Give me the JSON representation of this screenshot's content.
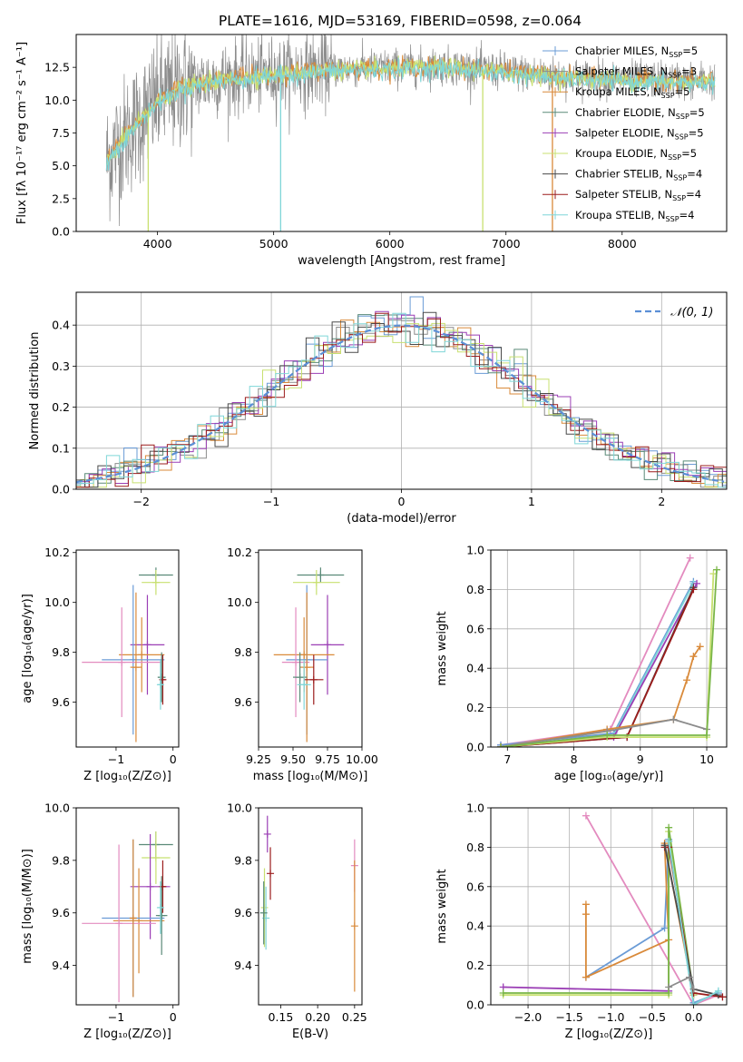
{
  "figure_title": "PLATE=1616, MJD=53169, FIBERID=0598, z=0.064",
  "colors": {
    "chabrier_miles": "#6a9bd6",
    "salpeter_miles": "#8c8c8c",
    "kroupa_miles": "#d98a3a",
    "chabrier_elodie": "#5a8a78",
    "salpeter_elodie": "#9b3fb5",
    "kroupa_elodie": "#c8e070",
    "chabrier_stelib": "#4a4a4a",
    "salpeter_stelib": "#9b1c1c",
    "kroupa_stelib": "#7fd6d8",
    "pink": "#e38bbf",
    "green": "#7ab648",
    "gaussian": "#5b8fd6",
    "grid": "#b0b0b0"
  },
  "chart_data": [
    {
      "id": "spectrum",
      "type": "line",
      "title": "PLATE=1616, MJD=53169, FIBERID=0598, z=0.064",
      "xlabel": "wavelength [Angstrom, rest frame]",
      "ylabel": "Flux [fλ 10⁻¹⁷ erg cm⁻² s⁻¹ A⁻¹]",
      "xlim": [
        3300,
        8900
      ],
      "ylim": [
        0,
        15
      ],
      "xticks": [
        4000,
        5000,
        6000,
        7000,
        8000
      ],
      "yticks": [
        0.0,
        2.5,
        5.0,
        7.5,
        10.0,
        12.5
      ],
      "ytick_labels": [
        "0.0",
        "2.5",
        "5.0",
        "7.5",
        "10.0",
        "12.5"
      ],
      "legend_position": "right",
      "legend": [
        {
          "label": "Chabrier MILES, N",
          "sub": "SSP",
          "suffix": "=5",
          "color": "#6a9bd6"
        },
        {
          "label": "Salpeter MILES, N",
          "sub": "SSP",
          "suffix": "=3",
          "color": "#8c8c8c"
        },
        {
          "label": "Kroupa MILES, N",
          "sub": "SSP",
          "suffix": "=5",
          "color": "#d98a3a"
        },
        {
          "label": "Chabrier ELODIE, N",
          "sub": "SSP",
          "suffix": "=5",
          "color": "#5a8a78"
        },
        {
          "label": "Salpeter ELODIE, N",
          "sub": "SSP",
          "suffix": "=5",
          "color": "#9b3fb5"
        },
        {
          "label": "Kroupa ELODIE, N",
          "sub": "SSP",
          "suffix": "=5",
          "color": "#c8e070"
        },
        {
          "label": "Chabrier STELIB, N",
          "sub": "SSP",
          "suffix": "=4",
          "color": "#4a4a4a"
        },
        {
          "label": "Salpeter STELIB, N",
          "sub": "SSP",
          "suffix": "=4",
          "color": "#9b1c1c"
        },
        {
          "label": "Kroupa STELIB, N",
          "sub": "SSP",
          "suffix": "=4",
          "color": "#7fd6d8"
        }
      ],
      "continuum": [
        [
          3550,
          5.2
        ],
        [
          3650,
          6.5
        ],
        [
          3800,
          8.0
        ],
        [
          3900,
          9.0
        ],
        [
          4000,
          10.0
        ],
        [
          4200,
          11.0
        ],
        [
          4500,
          11.6
        ],
        [
          5000,
          12.0
        ],
        [
          5500,
          12.4
        ],
        [
          6000,
          12.5
        ],
        [
          6500,
          12.6
        ],
        [
          7000,
          12.2
        ],
        [
          7500,
          11.8
        ],
        [
          8000,
          11.6
        ],
        [
          8500,
          11.5
        ],
        [
          8800,
          11.5
        ]
      ],
      "absorption_lines": [
        {
          "x": 3920,
          "depth": 9.0,
          "color": "#c8e070"
        },
        {
          "x": 5060,
          "depth": 12.0,
          "color": "#7fd6d8"
        },
        {
          "x": 6800,
          "depth": 12.0,
          "color": "#c8e070"
        },
        {
          "x": 7400,
          "depth": 12.0,
          "color": "#d98a3a"
        }
      ]
    },
    {
      "id": "residual_hist",
      "type": "line",
      "xlabel": "(data-model)/error",
      "ylabel": "Normed distribution",
      "xlim": [
        -2.5,
        2.5
      ],
      "ylim": [
        0,
        0.48
      ],
      "xticks": [
        -2,
        -1,
        0,
        1,
        2
      ],
      "xtick_labels": [
        "−2",
        "−1",
        "0",
        "1",
        "2"
      ],
      "yticks": [
        0.0,
        0.1,
        0.2,
        0.3,
        0.4
      ],
      "ytick_labels": [
        "0.0",
        "0.1",
        "0.2",
        "0.3",
        "0.4"
      ],
      "grid": true,
      "legend_label": "𝒩(0, 1)",
      "legend_position": "top-right",
      "bin_width": 0.1,
      "model_curve": "gaussian mean 0 sigma 1"
    },
    {
      "id": "z_vs_age",
      "type": "scatter",
      "xlabel": "Z [log₁₀(Z/Z⊙)]",
      "ylabel": "age  [log₁₀(age/yr)]",
      "xlim": [
        -1.7,
        0.1
      ],
      "ylim": [
        9.42,
        10.21
      ],
      "xticks": [
        -1,
        0
      ],
      "xtick_labels": [
        "−1",
        "0"
      ],
      "yticks": [
        9.6,
        9.8,
        10.0,
        10.2
      ],
      "ytick_labels": [
        "9.6",
        "9.8",
        "10.0",
        "10.2"
      ],
      "points": [
        {
          "x": -0.3,
          "y": 10.11,
          "xerr": 0.3,
          "yerr": 0.03,
          "color": "#5a8a78"
        },
        {
          "x": -0.3,
          "y": 10.08,
          "xerr": 0.25,
          "yerr": 0.05,
          "color": "#c8e070"
        },
        {
          "x": -0.45,
          "y": 9.83,
          "xerr": 0.3,
          "yerr": 0.2,
          "color": "#9b3fb5"
        },
        {
          "x": -0.55,
          "y": 9.79,
          "xerr": 0.4,
          "yerr": 0.15,
          "color": "#d98a3a"
        },
        {
          "x": -0.7,
          "y": 9.77,
          "xerr": 0.55,
          "yerr": 0.3,
          "color": "#6a9bd6"
        },
        {
          "x": -0.9,
          "y": 9.76,
          "xerr": 0.7,
          "yerr": 0.22,
          "color": "#e38bbf"
        },
        {
          "x": -0.65,
          "y": 9.74,
          "xerr": 0.1,
          "yerr": 0.3,
          "color": "#d98a3a"
        },
        {
          "x": -0.2,
          "y": 9.7,
          "xerr": 0.07,
          "yerr": 0.1,
          "color": "#5a8a78"
        },
        {
          "x": -0.18,
          "y": 9.69,
          "xerr": 0.05,
          "yerr": 0.1,
          "color": "#9b1c1c"
        },
        {
          "x": -0.22,
          "y": 9.67,
          "xerr": 0.05,
          "yerr": 0.1,
          "color": "#7fd6d8"
        }
      ]
    },
    {
      "id": "mass_vs_age",
      "type": "scatter",
      "xlabel": "mass [log₁₀(M/M⊙)]",
      "xlim": [
        9.25,
        10.0
      ],
      "ylim": [
        9.42,
        10.21
      ],
      "xticks": [
        9.25,
        9.5,
        9.75,
        10.0
      ],
      "xtick_labels": [
        "9.25",
        "9.50",
        "9.75",
        "10.00"
      ],
      "yticks": [
        9.6,
        9.8,
        10.0,
        10.2
      ],
      "ytick_labels": [
        "9.6",
        "9.8",
        "10.0",
        "10.2"
      ],
      "points": [
        {
          "x": 9.7,
          "y": 10.11,
          "xerr": 0.17,
          "yerr": 0.03,
          "color": "#5a8a78"
        },
        {
          "x": 9.67,
          "y": 10.08,
          "xerr": 0.17,
          "yerr": 0.05,
          "color": "#c8e070"
        },
        {
          "x": 9.75,
          "y": 9.83,
          "xerr": 0.12,
          "yerr": 0.2,
          "color": "#9b3fb5"
        },
        {
          "x": 9.58,
          "y": 9.79,
          "xerr": 0.22,
          "yerr": 0.15,
          "color": "#d98a3a"
        },
        {
          "x": 9.6,
          "y": 9.77,
          "xerr": 0.15,
          "yerr": 0.3,
          "color": "#6a9bd6"
        },
        {
          "x": 9.52,
          "y": 9.76,
          "xerr": 0.1,
          "yerr": 0.22,
          "color": "#e38bbf"
        },
        {
          "x": 9.6,
          "y": 9.74,
          "xerr": 0.05,
          "yerr": 0.3,
          "color": "#d98a3a"
        },
        {
          "x": 9.55,
          "y": 9.7,
          "xerr": 0.05,
          "yerr": 0.1,
          "color": "#5a8a78"
        },
        {
          "x": 9.65,
          "y": 9.69,
          "xerr": 0.07,
          "yerr": 0.1,
          "color": "#9b1c1c"
        },
        {
          "x": 9.58,
          "y": 9.67,
          "xerr": 0.05,
          "yerr": 0.1,
          "color": "#7fd6d8"
        }
      ]
    },
    {
      "id": "age_vs_massweight",
      "type": "line",
      "xlabel": "age  [log₁₀(age/yr)]",
      "ylabel": "mass weight",
      "xlim": [
        6.75,
        10.3
      ],
      "ylim": [
        0,
        1.0
      ],
      "xticks": [
        7,
        8,
        9,
        10
      ],
      "xtick_labels": [
        "7",
        "8",
        "9",
        "10"
      ],
      "yticks": [
        0.0,
        0.2,
        0.4,
        0.6,
        0.8,
        1.0
      ],
      "ytick_labels": [
        "0.0",
        "0.2",
        "0.4",
        "0.6",
        "0.8",
        "1.0"
      ],
      "grid": true,
      "series": [
        {
          "color": "#e38bbf",
          "x": [
            6.9,
            8.55,
            9.75
          ],
          "y": [
            0.01,
            0.09,
            0.96
          ]
        },
        {
          "color": "#6a9bd6",
          "x": [
            6.9,
            8.6,
            9.8
          ],
          "y": [
            0.01,
            0.07,
            0.84
          ]
        },
        {
          "color": "#7fd6d8",
          "x": [
            6.9,
            8.6,
            9.8
          ],
          "y": [
            0.0,
            0.06,
            0.83
          ]
        },
        {
          "color": "#9b3fb5",
          "x": [
            6.9,
            8.6,
            9.85
          ],
          "y": [
            0.0,
            0.05,
            0.83
          ]
        },
        {
          "color": "#4a4a4a",
          "x": [
            6.9,
            8.8,
            9.8
          ],
          "y": [
            0.0,
            0.05,
            0.81
          ]
        },
        {
          "color": "#9b1c1c",
          "x": [
            6.9,
            8.8,
            9.8
          ],
          "y": [
            0.0,
            0.05,
            0.8
          ]
        },
        {
          "color": "#d98a3a",
          "x": [
            6.9,
            8.5,
            9.5,
            9.7,
            9.8,
            9.9
          ],
          "y": [
            0.0,
            0.09,
            0.14,
            0.34,
            0.46,
            0.51
          ]
        },
        {
          "color": "#8c8c8c",
          "x": [
            6.9,
            8.5,
            9.5,
            10.0
          ],
          "y": [
            0.0,
            0.08,
            0.14,
            0.09
          ]
        },
        {
          "color": "#c8e070",
          "x": [
            6.9,
            8.5,
            10.0,
            10.1
          ],
          "y": [
            0.0,
            0.05,
            0.05,
            0.88
          ]
        },
        {
          "color": "#7ab648",
          "x": [
            6.9,
            8.5,
            10.0,
            10.15
          ],
          "y": [
            0.0,
            0.06,
            0.06,
            0.9
          ]
        }
      ]
    },
    {
      "id": "z_vs_mass",
      "type": "scatter",
      "xlabel": "Z [log₁₀(Z/Z⊙)]",
      "ylabel": "mass [log₁₀(M/M⊙)]",
      "xlim": [
        -1.7,
        0.1
      ],
      "ylim": [
        9.25,
        10.0
      ],
      "xticks": [
        -1,
        0
      ],
      "xtick_labels": [
        "−1",
        "0"
      ],
      "yticks": [
        9.4,
        9.6,
        9.8,
        10.0
      ],
      "ytick_labels": [
        "9.4",
        "9.6",
        "9.8",
        "10.0"
      ],
      "points": [
        {
          "x": -0.3,
          "y": 9.86,
          "xerr": 0.3,
          "yerr": 0.05,
          "color": "#5a8a78"
        },
        {
          "x": -0.3,
          "y": 9.81,
          "xerr": 0.25,
          "yerr": 0.1,
          "color": "#c8e070"
        },
        {
          "x": -0.4,
          "y": 9.7,
          "xerr": 0.35,
          "yerr": 0.2,
          "color": "#9b3fb5"
        },
        {
          "x": -0.6,
          "y": 9.57,
          "xerr": 0.45,
          "yerr": 0.2,
          "color": "#d98a3a"
        },
        {
          "x": -0.7,
          "y": 9.58,
          "xerr": 0.55,
          "yerr": 0.3,
          "color": "#6a9bd6"
        },
        {
          "x": -0.95,
          "y": 9.56,
          "xerr": 0.65,
          "yerr": 0.3,
          "color": "#e38bbf"
        },
        {
          "x": -0.7,
          "y": 9.58,
          "xerr": 0.05,
          "yerr": 0.3,
          "color": "#d98a3a"
        },
        {
          "x": -0.2,
          "y": 9.59,
          "xerr": 0.1,
          "yerr": 0.15,
          "color": "#5a8a78"
        },
        {
          "x": -0.18,
          "y": 9.7,
          "xerr": 0.05,
          "yerr": 0.1,
          "color": "#9b1c1c"
        },
        {
          "x": -0.22,
          "y": 9.62,
          "xerr": 0.05,
          "yerr": 0.1,
          "color": "#7fd6d8"
        }
      ]
    },
    {
      "id": "ebv_vs_mass",
      "type": "scatter",
      "xlabel": "E(B-V)",
      "xlim": [
        0.12,
        0.26
      ],
      "ylim": [
        9.25,
        10.0
      ],
      "xticks": [
        0.15,
        0.2,
        0.25
      ],
      "xtick_labels": [
        "0.15",
        "0.20",
        "0.25"
      ],
      "yticks": [
        9.4,
        9.6,
        9.8,
        10.0
      ],
      "ytick_labels": [
        "9.4",
        "9.6",
        "9.8",
        "10.0"
      ],
      "points": [
        {
          "x": 0.132,
          "y": 9.9,
          "xerr": 0,
          "yerr": 0.07,
          "color": "#9b3fb5"
        },
        {
          "x": 0.136,
          "y": 9.75,
          "xerr": 0,
          "yerr": 0.1,
          "color": "#9b1c1c"
        },
        {
          "x": 0.128,
          "y": 9.62,
          "xerr": 0,
          "yerr": 0.15,
          "color": "#c8e070"
        },
        {
          "x": 0.13,
          "y": 9.58,
          "xerr": 0,
          "yerr": 0.12,
          "color": "#7fd6d8"
        },
        {
          "x": 0.127,
          "y": 9.6,
          "xerr": 0,
          "yerr": 0.12,
          "color": "#5a8a78"
        },
        {
          "x": 0.25,
          "y": 9.78,
          "xerr": 0,
          "yerr": 0.1,
          "color": "#e38bbf"
        },
        {
          "x": 0.25,
          "y": 9.55,
          "xerr": 0,
          "yerr": 0.25,
          "color": "#d98a3a"
        }
      ]
    },
    {
      "id": "z_vs_massweight",
      "type": "line",
      "xlabel": "Z [log₁₀(Z/Z⊙)]",
      "ylabel": "mass weight",
      "xlim": [
        -2.45,
        0.4
      ],
      "ylim": [
        0,
        1.0
      ],
      "xticks": [
        -2.0,
        -1.5,
        -1.0,
        -0.5,
        0.0
      ],
      "xtick_labels": [
        "−2.0",
        "−1.5",
        "−1.0",
        "−0.5",
        "0.0"
      ],
      "yticks": [
        0.0,
        0.2,
        0.4,
        0.6,
        0.8,
        1.0
      ],
      "ytick_labels": [
        "0.0",
        "0.2",
        "0.4",
        "0.6",
        "0.8",
        "1.0"
      ],
      "grid": true,
      "series": [
        {
          "color": "#e38bbf",
          "x": [
            -1.3,
            0.0,
            0.3
          ],
          "y": [
            0.96,
            0.0,
            0.05
          ]
        },
        {
          "color": "#6a9bd6",
          "x": [
            -1.3,
            -0.35,
            -0.3,
            0.0,
            0.3
          ],
          "y": [
            0.14,
            0.39,
            0.84,
            0.01,
            0.06
          ]
        },
        {
          "color": "#d98a3a",
          "x": [
            -1.3,
            -1.3,
            -1.3,
            -0.3,
            -0.35,
            0.0
          ],
          "y": [
            0.51,
            0.46,
            0.14,
            0.33,
            0.82,
            0.05
          ]
        },
        {
          "color": "#9b3fb5",
          "x": [
            -2.3,
            -0.3,
            -0.3,
            0.0
          ],
          "y": [
            0.09,
            0.07,
            0.83,
            0.05
          ]
        },
        {
          "color": "#c8e070",
          "x": [
            -2.3,
            -0.3,
            -0.3,
            0.0
          ],
          "y": [
            0.05,
            0.05,
            0.88,
            0.05
          ]
        },
        {
          "color": "#7ab648",
          "x": [
            -2.3,
            -0.3,
            -0.3,
            0.0
          ],
          "y": [
            0.06,
            0.06,
            0.9,
            0.06
          ]
        },
        {
          "color": "#9b1c1c",
          "x": [
            -0.35,
            -0.3,
            0.0,
            0.35
          ],
          "y": [
            0.8,
            0.8,
            0.06,
            0.04
          ]
        },
        {
          "color": "#4a4a4a",
          "x": [
            -0.35,
            0.0,
            0.3
          ],
          "y": [
            0.81,
            0.08,
            0.05
          ]
        },
        {
          "color": "#7fd6d8",
          "x": [
            -0.3,
            0.0,
            0.3
          ],
          "y": [
            0.83,
            0.0,
            0.07
          ]
        },
        {
          "color": "#8c8c8c",
          "x": [
            -0.3,
            -0.05,
            0.0
          ],
          "y": [
            0.09,
            0.14,
            0.08
          ]
        }
      ]
    }
  ]
}
